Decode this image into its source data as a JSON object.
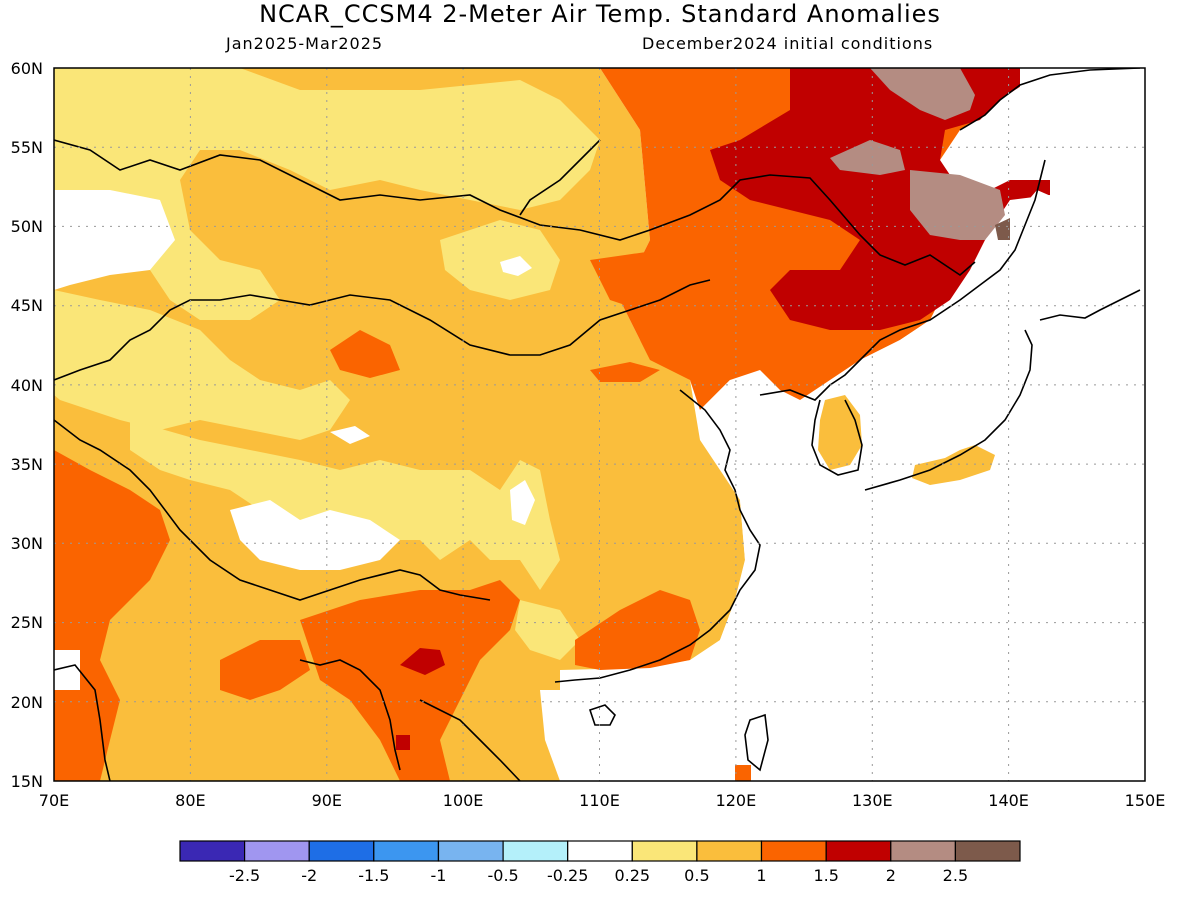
{
  "title": "NCAR_CCSM4 2-Meter Air Temp. Standard Anomalies",
  "subtitle_left": "Jan2025-Mar2025",
  "subtitle_right": "December2024 initial conditions",
  "map": {
    "lon_range": [
      70,
      150
    ],
    "lat_range": [
      15,
      60
    ],
    "lon_ticks": [
      "70E",
      "80E",
      "90E",
      "100E",
      "110E",
      "120E",
      "130E",
      "140E",
      "150E"
    ],
    "lat_ticks": [
      "15N",
      "20N",
      "25N",
      "30N",
      "35N",
      "40N",
      "45N",
      "50N",
      "55N",
      "60N"
    ],
    "grid": "dotted",
    "ocean_color": "#ffffff",
    "coastline_color": "#000000"
  },
  "colorbar": {
    "colors": [
      "#3a28b4",
      "#a096f0",
      "#1e6ee6",
      "#3c96f0",
      "#78b4f0",
      "#b4f0fa",
      "#ffffff",
      "#fae678",
      "#fabe3c",
      "#fa6400",
      "#c00000",
      "#b48c82",
      "#7d5a4b"
    ],
    "labels": [
      "-2.5",
      "-2",
      "-1.5",
      "-1",
      "-0.5",
      "-0.25",
      "0.25",
      "0.5",
      "1",
      "1.5",
      "2",
      "2.5"
    ]
  }
}
